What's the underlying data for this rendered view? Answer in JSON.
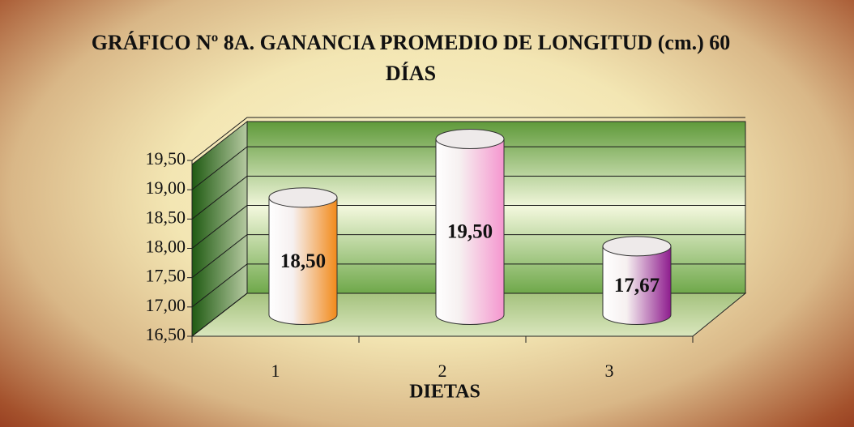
{
  "chart_data": {
    "type": "bar3d",
    "title": "GRÁFICO Nº 8A. GANANCIA PROMEDIO DE LONGITUD (cm.) 60 DÍAS",
    "x_label": "DIETAS",
    "categories": [
      "1",
      "2",
      "3"
    ],
    "values": [
      18.5,
      19.5,
      17.67
    ],
    "value_labels": [
      "18,50",
      "19,50",
      "17,67"
    ],
    "colors": [
      "#f28a1a",
      "#f596cf",
      "#8e1c8e"
    ],
    "ylim": [
      16.5,
      19.5
    ],
    "yticks": [
      {
        "value": 16.5,
        "label": "16,50"
      },
      {
        "value": 17.0,
        "label": "17,00"
      },
      {
        "value": 17.5,
        "label": "17,50"
      },
      {
        "value": 18.0,
        "label": "18,00"
      },
      {
        "value": 18.5,
        "label": "18,50"
      },
      {
        "value": 19.0,
        "label": "19,00"
      },
      {
        "value": 19.5,
        "label": "19,50"
      }
    ],
    "grid": true
  }
}
